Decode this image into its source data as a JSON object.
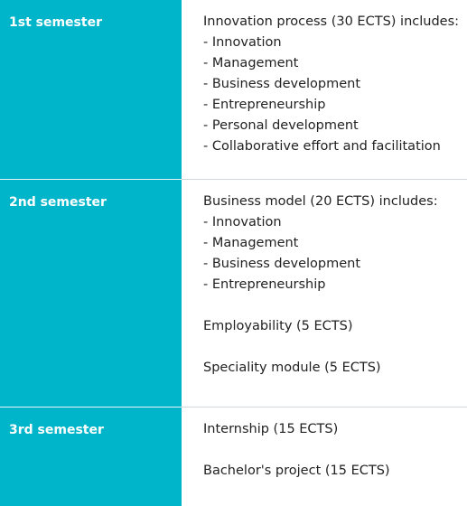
{
  "semesters": [
    {
      "title": "1st semester",
      "lines": [
        "Innovation process (30 ECTS) includes:",
        "- Innovation",
        "- Management",
        "- Business development",
        "- Entrepreneurship",
        "- Personal development",
        "- Collaborative effort and facilitation"
      ]
    },
    {
      "title": "2nd semester",
      "lines": [
        "Business model (20 ECTS) includes:",
        "- Innovation",
        "- Management",
        "- Business development",
        "- Entrepreneurship"
      ],
      "extra": [
        "Employability (5 ECTS)",
        "Speciality module (5 ECTS)"
      ]
    },
    {
      "title": "3rd semester",
      "lines": [
        "Internship (15 ECTS)"
      ],
      "extra": [
        "Bachelor's project (15 ECTS)"
      ]
    }
  ],
  "colors": {
    "accent": "#00b5c9",
    "text": "#222222",
    "background": "#ffffff"
  }
}
